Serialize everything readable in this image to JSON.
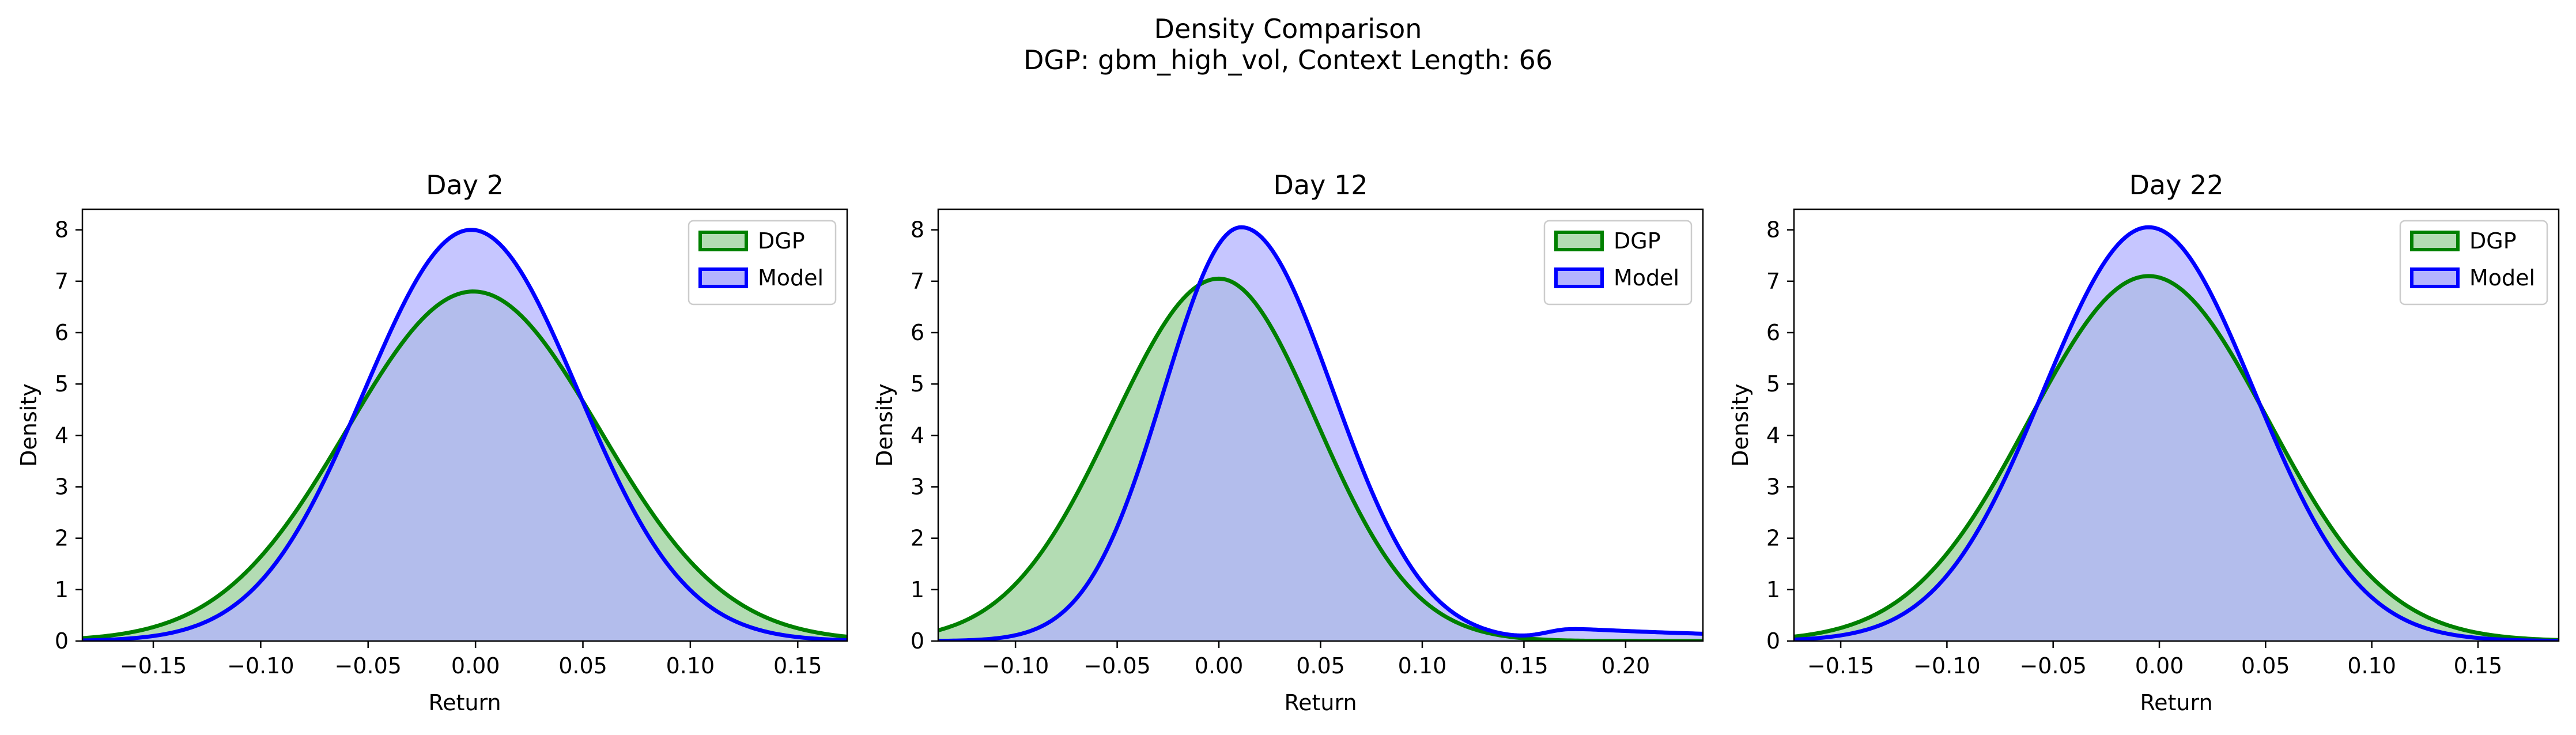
{
  "figure": {
    "title": "Density Comparison",
    "subtitle": "DGP: gbm_high_vol, Context Length: 66"
  },
  "colors": {
    "dgp_line": "#008000",
    "dgp_fill": "#b3dcb3",
    "model_line": "#0000ff",
    "model_fill": "#b3b3ff",
    "overlap_fill": "#7f97c9"
  },
  "chart_data": [
    {
      "type": "area",
      "title": "Day 2",
      "xlabel": "Return",
      "ylabel": "Density",
      "xlim": [
        -0.183,
        0.173
      ],
      "ylim": [
        0,
        8.4
      ],
      "xticks": [
        -0.15,
        -0.1,
        -0.05,
        0.0,
        0.05,
        0.1,
        0.15
      ],
      "xtick_labels": [
        "−0.15",
        "−0.10",
        "−0.05",
        "0.00",
        "0.05",
        "0.10",
        "0.15"
      ],
      "yticks": [
        0,
        1,
        2,
        3,
        4,
        5,
        6,
        7,
        8
      ],
      "ytick_labels": [
        "0",
        "1",
        "2",
        "3",
        "4",
        "5",
        "6",
        "7",
        "8"
      ],
      "legend": "top-right",
      "grid": false,
      "series": [
        {
          "name": "DGP",
          "mean": -0.001,
          "sd": 0.0587,
          "peak": 6.8
        },
        {
          "name": "Model",
          "mean": -0.002,
          "sd": 0.0499,
          "peak": 8.0
        }
      ]
    },
    {
      "type": "area",
      "title": "Day 12",
      "xlabel": "Return",
      "ylabel": "Density",
      "xlim": [
        -0.138,
        0.238
      ],
      "ylim": [
        0,
        8.4
      ],
      "xticks": [
        -0.1,
        -0.05,
        0.0,
        0.05,
        0.1,
        0.15,
        0.2
      ],
      "xtick_labels": [
        "−0.10",
        "−0.05",
        "0.00",
        "0.05",
        "0.10",
        "0.15",
        "0.20"
      ],
      "yticks": [
        0,
        1,
        2,
        3,
        4,
        5,
        6,
        7,
        8
      ],
      "ytick_labels": [
        "0",
        "1",
        "2",
        "3",
        "4",
        "5",
        "6",
        "7",
        "8"
      ],
      "legend": "top-right",
      "grid": false,
      "series": [
        {
          "name": "DGP",
          "mean": 0.0,
          "sd_left": 0.052,
          "sd_right": 0.048,
          "peak": 7.05
        },
        {
          "name": "Model",
          "mean": 0.011,
          "sd_left": 0.038,
          "sd_right": 0.045,
          "peak": 8.05,
          "tail_level": 0.25
        }
      ]
    },
    {
      "type": "area",
      "title": "Day 22",
      "xlabel": "Return",
      "ylabel": "Density",
      "xlim": [
        -0.172,
        0.188
      ],
      "ylim": [
        0,
        8.4
      ],
      "xticks": [
        -0.15,
        -0.1,
        -0.05,
        0.0,
        0.05,
        0.1,
        0.15
      ],
      "xtick_labels": [
        "−0.15",
        "−0.10",
        "−0.05",
        "0.00",
        "0.05",
        "0.10",
        "0.15"
      ],
      "yticks": [
        0,
        1,
        2,
        3,
        4,
        5,
        6,
        7,
        8
      ],
      "ytick_labels": [
        "0",
        "1",
        "2",
        "3",
        "4",
        "5",
        "6",
        "7",
        "8"
      ],
      "legend": "top-right",
      "grid": false,
      "series": [
        {
          "name": "DGP",
          "mean": -0.005,
          "sd": 0.0562,
          "peak": 7.1
        },
        {
          "name": "Model",
          "mean": -0.005,
          "sd": 0.0495,
          "peak": 8.05
        }
      ]
    }
  ]
}
